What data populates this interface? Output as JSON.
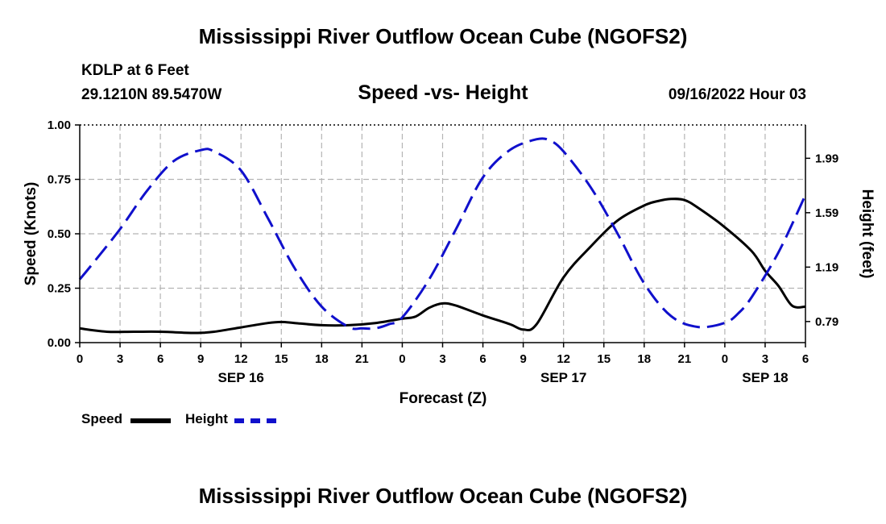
{
  "header": {
    "title": "Mississippi River Outflow Ocean Cube (NGOFS2)",
    "station": "KDLP at 6 Feet",
    "coords": "29.1210N  89.5470W",
    "subtitle": "Speed -vs- Height",
    "datetime": "09/16/2022 Hour 03"
  },
  "footer_title": "Mississippi River Outflow Ocean Cube (NGOFS2)",
  "legend": {
    "speed_label": "Speed",
    "height_label": "Height"
  },
  "colors": {
    "speed": "#000000",
    "height": "#1010cc",
    "grid": "#b4b4b4"
  },
  "chart_data": {
    "type": "line",
    "xlabel": "Forecast (Z)",
    "ylabel": "Speed (Knots)",
    "y2label": "Height (feet)",
    "xlim": [
      0,
      54
    ],
    "ylim": [
      0,
      1
    ],
    "y2lim": [
      0.635,
      2.235
    ],
    "x_ticks": [
      0,
      3,
      6,
      9,
      12,
      15,
      18,
      21,
      24,
      27,
      30,
      33,
      36,
      39,
      42,
      45,
      48,
      51,
      54
    ],
    "x_tick_labels": [
      "0",
      "3",
      "6",
      "9",
      "12",
      "15",
      "18",
      "21",
      "0",
      "3",
      "6",
      "9",
      "12",
      "15",
      "18",
      "21",
      "0",
      "3",
      "6"
    ],
    "y_ticks": [
      "0.00",
      "0.25",
      "0.50",
      "0.75",
      "1.00"
    ],
    "y2_ticks": [
      "0.79",
      "1.19",
      "1.59",
      "1.99"
    ],
    "date_labels": [
      {
        "x": 12,
        "label": "SEP 16"
      },
      {
        "x": 36,
        "label": "SEP 17"
      },
      {
        "x": 51,
        "label": "SEP 18"
      }
    ],
    "series": [
      {
        "name": "Speed",
        "axis": "left",
        "style": "solid",
        "x": [
          0,
          2,
          4,
          6,
          8,
          9,
          10,
          12,
          14,
          15,
          16,
          18,
          20,
          22,
          24,
          25,
          26,
          27,
          28,
          30,
          32,
          33,
          34,
          36,
          38,
          40,
          42,
          43,
          44,
          45,
          46,
          48,
          50,
          51,
          52,
          53,
          54
        ],
        "y": [
          0.065,
          0.05,
          0.05,
          0.05,
          0.045,
          0.045,
          0.05,
          0.07,
          0.09,
          0.095,
          0.09,
          0.08,
          0.08,
          0.09,
          0.11,
          0.12,
          0.16,
          0.18,
          0.17,
          0.125,
          0.085,
          0.06,
          0.085,
          0.3,
          0.44,
          0.56,
          0.63,
          0.65,
          0.66,
          0.655,
          0.62,
          0.53,
          0.42,
          0.33,
          0.26,
          0.17,
          0.165
        ]
      },
      {
        "name": "Height",
        "axis": "right",
        "style": "dashed",
        "x": [
          0,
          1,
          3,
          5,
          7,
          9,
          10,
          12,
          14,
          16,
          18,
          20,
          21,
          22,
          23,
          24,
          26,
          28,
          30,
          32,
          34,
          35,
          36,
          38,
          40,
          42,
          44,
          46,
          48,
          49,
          50,
          52,
          54
        ],
        "y": [
          1.1,
          1.22,
          1.47,
          1.75,
          1.97,
          2.05,
          2.04,
          1.9,
          1.55,
          1.18,
          0.9,
          0.75,
          0.74,
          0.74,
          0.77,
          0.82,
          1.1,
          1.47,
          1.85,
          2.05,
          2.13,
          2.12,
          2.04,
          1.78,
          1.44,
          1.07,
          0.83,
          0.75,
          0.78,
          0.85,
          0.97,
          1.3,
          1.72
        ]
      }
    ]
  }
}
